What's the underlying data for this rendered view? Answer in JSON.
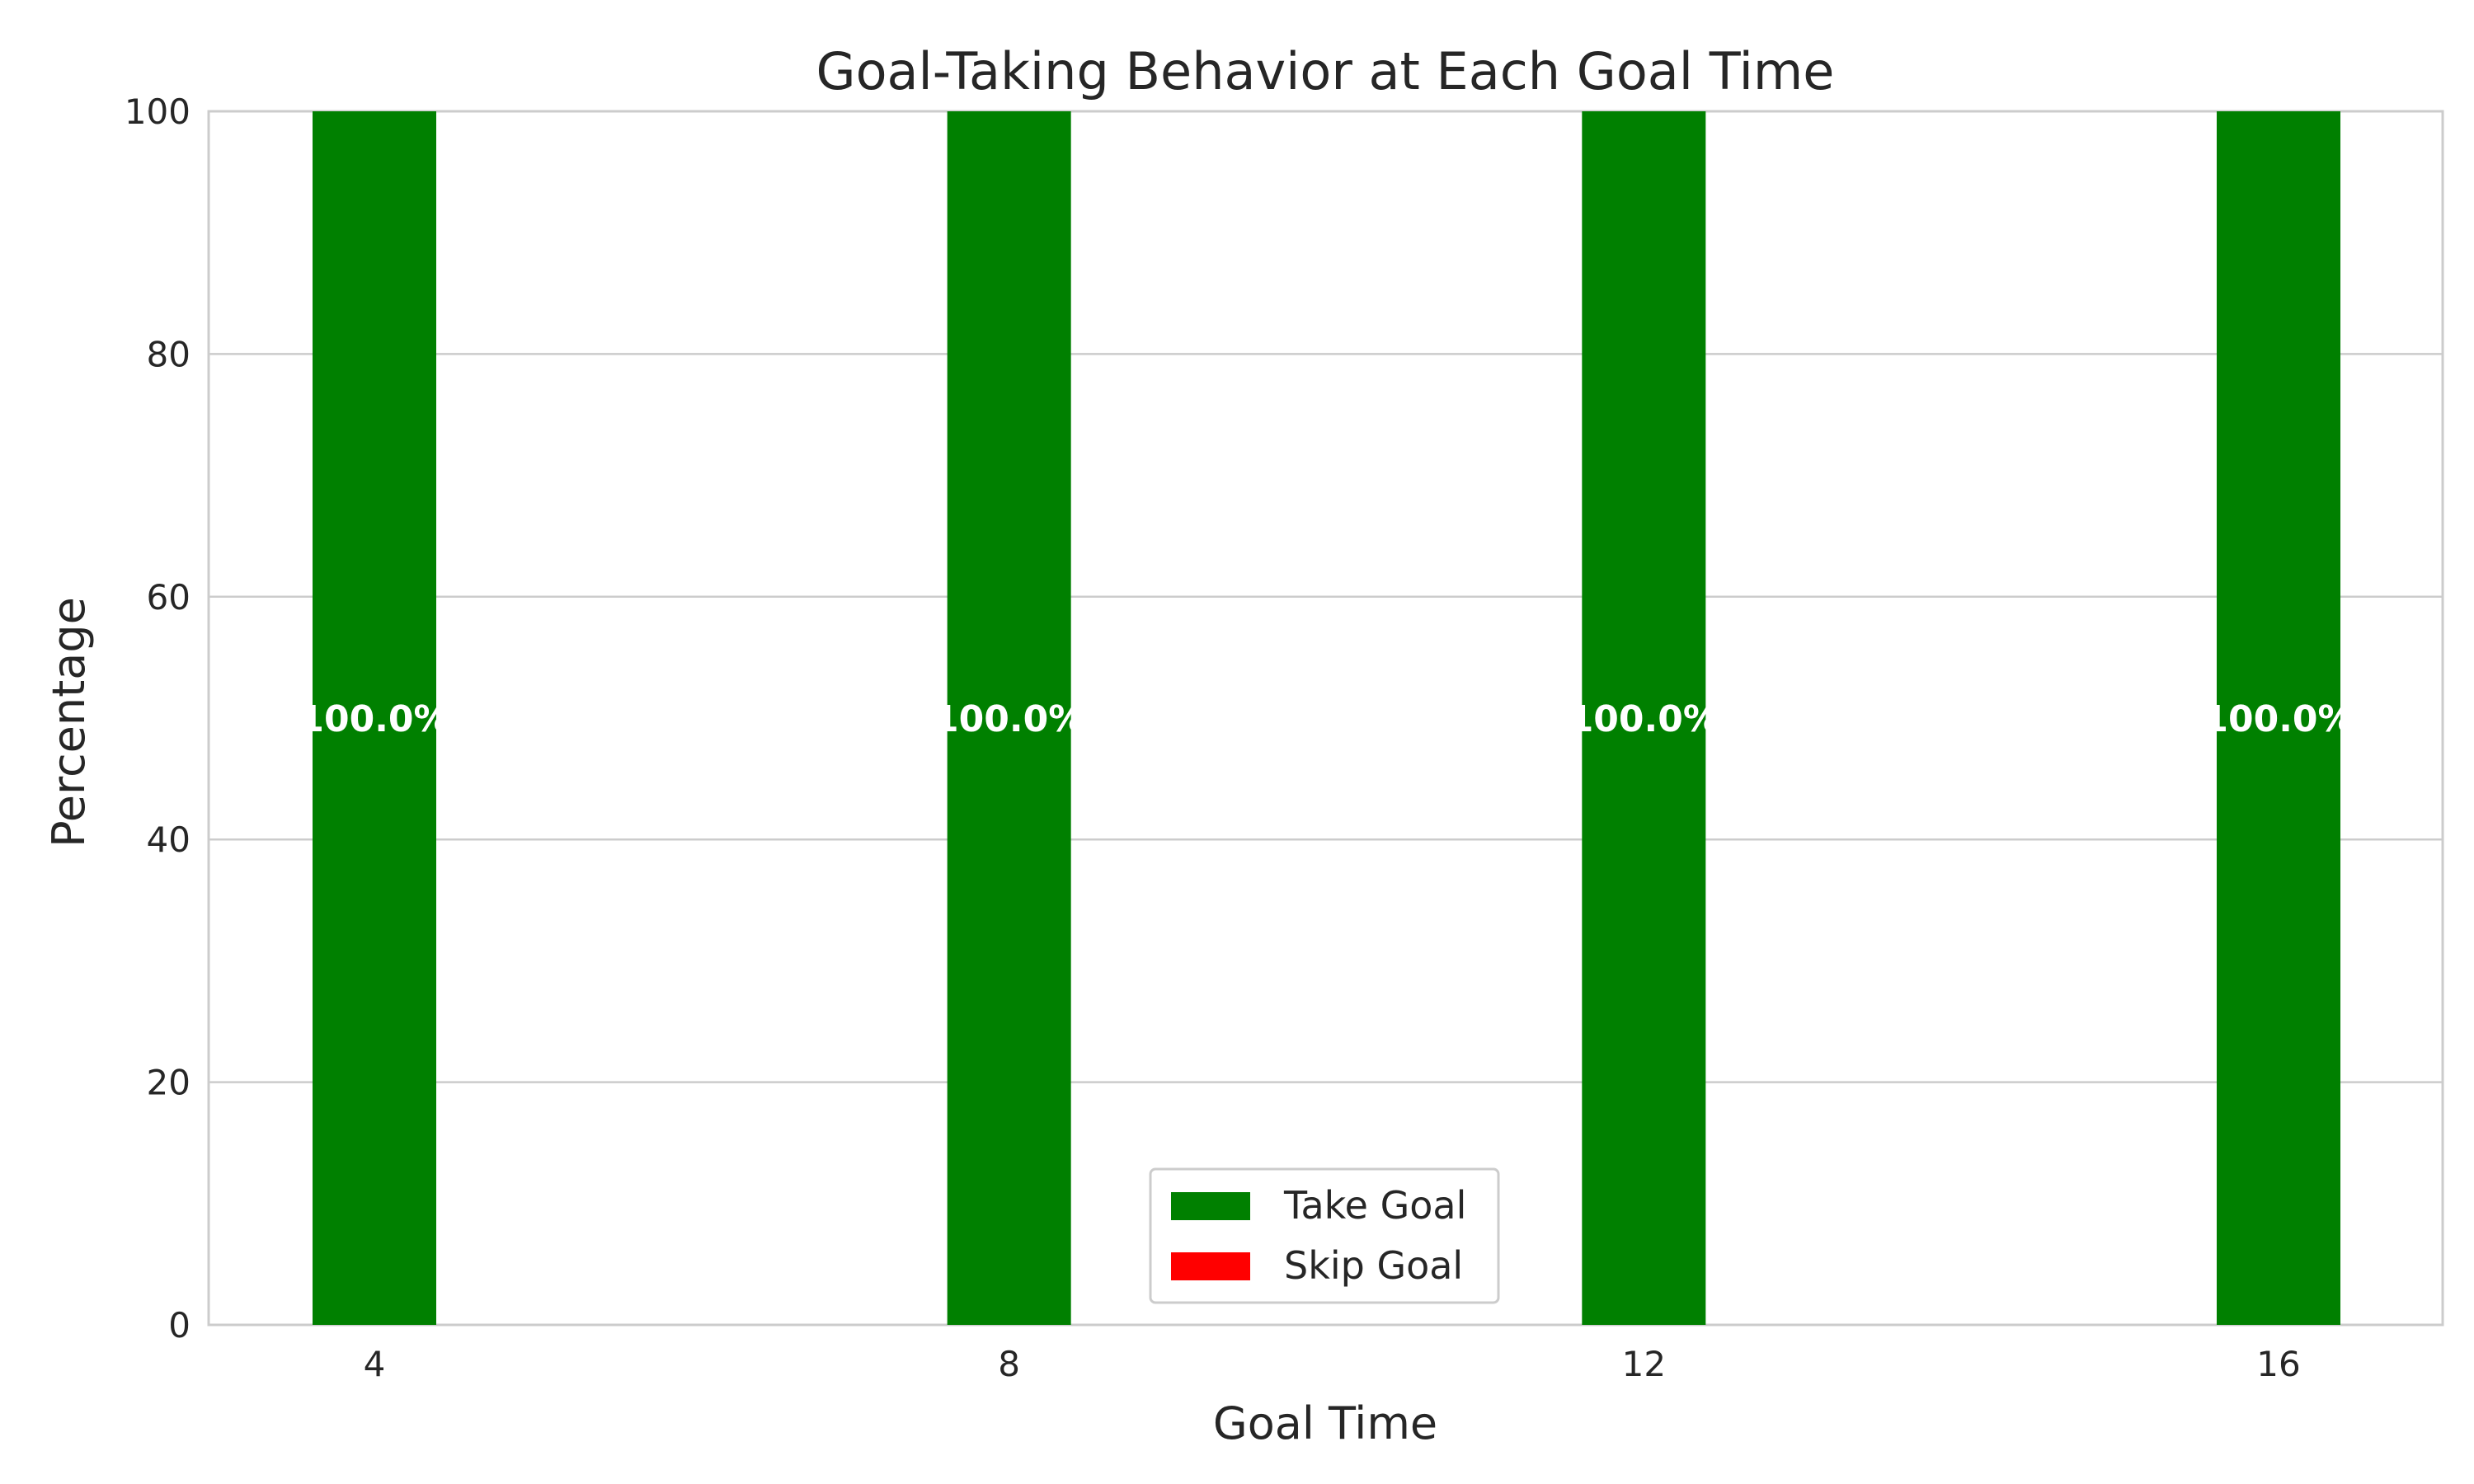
{
  "chart_data": {
    "type": "bar",
    "title": "Goal-Taking Behavior at Each Goal Time",
    "xlabel": "Goal Time",
    "ylabel": "Percentage",
    "categories": [
      "4",
      "8",
      "12",
      "16"
    ],
    "ylim": [
      0,
      100
    ],
    "yticks": [
      "0",
      "20",
      "40",
      "60",
      "80",
      "100"
    ],
    "stacked": true,
    "grid": true,
    "legend_position": "bottom-center",
    "series": [
      {
        "name": "Take Goal",
        "color": "#008000",
        "values": [
          100,
          100,
          100,
          100
        ]
      },
      {
        "name": "Skip Goal",
        "color": "#ff0000",
        "values": [
          0,
          0,
          0,
          0
        ]
      }
    ],
    "data_labels": [
      "100.0%",
      "100.0%",
      "100.0%",
      "100.0%"
    ]
  }
}
